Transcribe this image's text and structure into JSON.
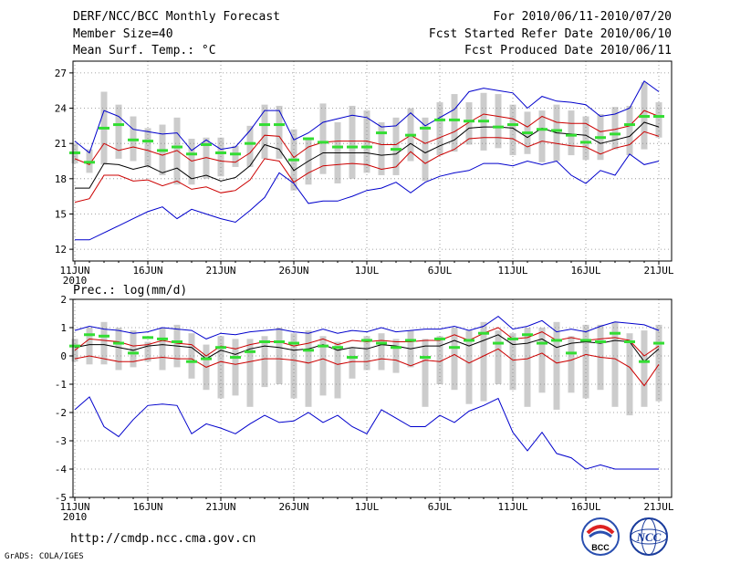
{
  "header": {
    "title": "DERF/NCC/BCC Monthly Forecast",
    "member_size": "Member Size=40",
    "variable": "Mean Surf. Temp.: °C",
    "forecast_period": "For 2010/06/11-2010/07/20",
    "refer_date": "Fcst Started Refer Date 2010/06/10",
    "produced_date": "Fcst Produced Date 2010/06/11"
  },
  "footer": {
    "url": "http://cmdp.ncc.cma.gov.cn",
    "credit": "GrADS: COLA/IGES",
    "logo_left_text": "BCC",
    "logo_right_text": "NCC"
  },
  "colors": {
    "max_min": "#0000cc",
    "spread": "#cc0000",
    "mean": "#000000",
    "median": "#33dd33",
    "box": "#cccccc"
  },
  "chart_data": [
    {
      "type": "line",
      "title": "Mean Surf. Temp.: °C",
      "days": 40,
      "ylim": [
        11,
        28
      ],
      "yticks": [
        12,
        15,
        18,
        21,
        24,
        27
      ],
      "xtick_labels": [
        "11JUN",
        "16JUN",
        "21JUN",
        "26JUN",
        "1JUL",
        "6JUL",
        "11JUL",
        "16JUL",
        "21JUL"
      ],
      "xtick_sub": "2010",
      "series": [
        {
          "name": "max",
          "color": "blue",
          "values": [
            21.2,
            20.2,
            23.8,
            23.3,
            22.2,
            22.0,
            21.8,
            21.9,
            20.4,
            21.3,
            20.5,
            20.7,
            22.1,
            23.8,
            23.8,
            21.3,
            21.9,
            22.8,
            23.1,
            23.4,
            23.2,
            22.4,
            22.5,
            23.6,
            22.5,
            23.2,
            23.9,
            25.4,
            25.7,
            25.5,
            25.3,
            24.0,
            25.0,
            24.6,
            24.5,
            24.3,
            23.3,
            23.5,
            24.0,
            26.3,
            25.4
          ]
        },
        {
          "name": "upper",
          "color": "red",
          "values": [
            19.7,
            19.2,
            21.0,
            20.4,
            20.7,
            20.4,
            20.0,
            20.4,
            19.5,
            19.8,
            19.5,
            19.4,
            20.2,
            21.7,
            21.6,
            19.8,
            20.7,
            21.1,
            21.2,
            21.2,
            21.2,
            20.9,
            20.9,
            21.7,
            21.0,
            21.5,
            22.0,
            22.8,
            23.5,
            23.3,
            23.1,
            22.4,
            23.3,
            22.8,
            22.7,
            22.7,
            22.0,
            22.2,
            22.5,
            23.8,
            23.3
          ]
        },
        {
          "name": "mean",
          "color": "black",
          "values": [
            17.2,
            17.2,
            19.3,
            19.2,
            18.8,
            19.1,
            18.5,
            18.9,
            18.0,
            18.3,
            17.8,
            18.1,
            19.1,
            20.9,
            20.5,
            18.7,
            19.5,
            20.2,
            20.2,
            20.2,
            20.2,
            20.0,
            20.1,
            21.0,
            20.2,
            20.8,
            21.3,
            22.3,
            22.4,
            22.4,
            22.3,
            21.5,
            22.3,
            21.9,
            21.8,
            21.7,
            21.0,
            21.3,
            21.6,
            22.8,
            22.4
          ]
        },
        {
          "name": "lower",
          "color": "red",
          "values": [
            16.0,
            16.3,
            18.3,
            18.3,
            17.8,
            17.9,
            17.4,
            17.8,
            17.1,
            17.3,
            16.8,
            17.0,
            17.9,
            19.7,
            19.5,
            17.7,
            18.5,
            19.1,
            19.2,
            19.3,
            19.2,
            18.8,
            19.0,
            20.3,
            19.3,
            20.0,
            20.5,
            21.4,
            21.5,
            21.5,
            21.4,
            20.7,
            21.2,
            21.0,
            20.8,
            20.7,
            20.1,
            20.6,
            20.9,
            22.0,
            21.6
          ]
        },
        {
          "name": "min",
          "color": "blue",
          "values": [
            12.8,
            12.8,
            13.4,
            14.0,
            14.6,
            15.2,
            15.6,
            14.6,
            15.4,
            15.0,
            14.6,
            14.3,
            15.3,
            16.4,
            18.5,
            17.6,
            15.9,
            16.1,
            16.1,
            16.5,
            17.0,
            17.2,
            17.7,
            16.8,
            17.7,
            18.2,
            18.5,
            18.7,
            19.3,
            19.3,
            19.1,
            19.5,
            19.2,
            19.5,
            18.3,
            17.6,
            18.7,
            18.3,
            20.1,
            19.2,
            19.5
          ]
        },
        {
          "name": "median",
          "color": "green",
          "values": [
            20.2,
            19.4,
            22.3,
            22.6,
            21.3,
            21.2,
            20.4,
            20.7,
            20.1,
            20.9,
            20.2,
            20.1,
            21.0,
            22.6,
            22.6,
            19.6,
            21.4,
            21.1,
            20.7,
            20.7,
            20.7,
            21.9,
            20.5,
            21.7,
            22.3,
            23.0,
            23.0,
            22.9,
            22.9,
            22.4,
            22.6,
            21.9,
            22.2,
            22.1,
            21.7,
            21.1,
            21.5,
            21.8,
            22.6,
            23.3,
            23.3
          ]
        },
        {
          "name": "box_top",
          "color": "gray",
          "values": [
            21.0,
            20.5,
            25.4,
            24.3,
            23.3,
            22.3,
            22.6,
            23.2,
            21.4,
            21.5,
            21.5,
            20.8,
            22.5,
            24.3,
            24.2,
            22.2,
            21.5,
            24.4,
            22.8,
            24.2,
            23.8,
            22.8,
            23.2,
            24.0,
            23.2,
            24.5,
            25.2,
            24.5,
            25.3,
            25.2,
            24.3,
            23.7,
            23.8,
            24.3,
            23.8,
            23.3,
            23.5,
            24.1,
            24.2,
            26.2,
            24.5
          ]
        },
        {
          "name": "box_bottom",
          "color": "gray",
          "values": [
            19.3,
            18.5,
            19.2,
            19.7,
            19.5,
            19.0,
            18.3,
            17.5,
            17.5,
            18.0,
            18.2,
            19.0,
            19.0,
            19.7,
            19.7,
            17.0,
            17.5,
            18.4,
            17.6,
            18.0,
            18.5,
            18.3,
            18.3,
            19.5,
            17.8,
            20.0,
            20.3,
            20.9,
            20.4,
            20.6,
            20.0,
            20.1,
            19.4,
            19.5,
            20.0,
            19.6,
            19.6,
            20.5,
            20.0,
            20.5,
            21.5
          ]
        }
      ]
    },
    {
      "type": "line",
      "title": "Prec.: log(mm/d)",
      "days": 40,
      "ylim": [
        -5,
        2
      ],
      "yticks": [
        -5,
        -4,
        -3,
        -2,
        -1,
        0,
        1,
        2
      ],
      "xtick_labels": [
        "11JUN",
        "16JUN",
        "21JUN",
        "26JUN",
        "1JUL",
        "6JUL",
        "11JUL",
        "16JUL",
        "21JUL"
      ],
      "xtick_sub": "2010",
      "series": [
        {
          "name": "max",
          "color": "blue",
          "values": [
            0.9,
            1.05,
            0.95,
            0.9,
            0.8,
            0.85,
            1.0,
            0.95,
            0.9,
            0.6,
            0.8,
            0.75,
            0.85,
            0.9,
            0.95,
            0.85,
            0.8,
            0.95,
            0.8,
            0.9,
            0.85,
            1.0,
            0.85,
            0.9,
            0.95,
            0.95,
            1.05,
            0.9,
            1.05,
            1.4,
            0.95,
            1.05,
            1.25,
            0.85,
            0.95,
            0.85,
            1.05,
            1.2,
            1.15,
            1.1,
            0.9
          ]
        },
        {
          "name": "upper",
          "color": "red",
          "values": [
            0.2,
            0.6,
            0.55,
            0.5,
            0.35,
            0.4,
            0.55,
            0.45,
            0.4,
            0.0,
            0.35,
            0.25,
            0.4,
            0.5,
            0.5,
            0.35,
            0.45,
            0.6,
            0.4,
            0.55,
            0.5,
            0.55,
            0.5,
            0.5,
            0.55,
            0.55,
            0.75,
            0.55,
            0.8,
            1.0,
            0.6,
            0.65,
            0.85,
            0.55,
            0.65,
            0.55,
            0.6,
            0.65,
            0.55,
            0.0,
            0.35
          ]
        },
        {
          "name": "mean",
          "color": "black",
          "values": [
            0.3,
            0.4,
            0.4,
            0.3,
            0.2,
            0.35,
            0.4,
            0.35,
            0.3,
            -0.1,
            0.2,
            0.05,
            0.25,
            0.35,
            0.3,
            0.2,
            0.25,
            0.4,
            0.2,
            0.3,
            0.25,
            0.4,
            0.35,
            0.25,
            0.35,
            0.35,
            0.55,
            0.35,
            0.55,
            0.75,
            0.4,
            0.45,
            0.6,
            0.3,
            0.45,
            0.5,
            0.45,
            0.55,
            0.5,
            -0.2,
            0.25
          ]
        },
        {
          "name": "lower",
          "color": "red",
          "values": [
            -0.1,
            0.0,
            -0.1,
            -0.2,
            -0.2,
            -0.1,
            -0.05,
            -0.1,
            -0.1,
            -0.4,
            -0.2,
            -0.3,
            -0.2,
            -0.1,
            -0.1,
            -0.15,
            -0.25,
            -0.1,
            -0.3,
            -0.2,
            -0.2,
            -0.1,
            -0.15,
            -0.35,
            -0.15,
            -0.2,
            0.05,
            -0.25,
            0.0,
            0.25,
            -0.15,
            -0.1,
            0.1,
            -0.25,
            -0.15,
            0.05,
            -0.05,
            -0.1,
            -0.4,
            -1.05,
            -0.3
          ]
        },
        {
          "name": "min",
          "color": "blue",
          "values": [
            -1.9,
            -1.45,
            -2.5,
            -2.85,
            -2.25,
            -1.75,
            -1.7,
            -1.75,
            -2.75,
            -2.4,
            -2.55,
            -2.75,
            -2.4,
            -2.1,
            -2.35,
            -2.3,
            -2.0,
            -2.35,
            -2.1,
            -2.5,
            -2.75,
            -1.9,
            -2.2,
            -2.5,
            -2.5,
            -2.1,
            -2.35,
            -1.95,
            -1.75,
            -1.5,
            -2.7,
            -3.35,
            -2.7,
            -3.45,
            -3.6,
            -4.0,
            -3.85,
            -4.0,
            -4.0,
            -4.0,
            -4.0
          ]
        },
        {
          "name": "median",
          "color": "green",
          "values": [
            0.35,
            0.75,
            0.7,
            0.45,
            0.1,
            0.65,
            0.6,
            0.5,
            -0.2,
            -0.1,
            0.3,
            -0.05,
            0.15,
            0.5,
            0.5,
            0.45,
            0.2,
            0.35,
            0.3,
            -0.05,
            0.55,
            0.45,
            0.3,
            0.55,
            -0.05,
            0.6,
            0.3,
            0.55,
            0.8,
            0.45,
            0.6,
            0.75,
            0.45,
            0.55,
            0.1,
            0.55,
            0.5,
            0.8,
            0.5,
            -0.2,
            0.45
          ]
        },
        {
          "name": "box_top",
          "color": "gray",
          "values": [
            0.6,
            1.0,
            1.2,
            1.0,
            0.9,
            0.5,
            1.0,
            1.1,
            0.8,
            0.4,
            0.7,
            0.6,
            0.6,
            0.7,
            1.0,
            0.8,
            0.9,
            0.7,
            0.5,
            0.3,
            0.7,
            0.8,
            0.6,
            0.9,
            0.6,
            0.7,
            1.0,
            0.9,
            1.2,
            0.9,
            0.8,
            1.0,
            1.0,
            1.2,
            0.7,
            1.1,
            1.1,
            1.2,
            0.8,
            0.9,
            1.1
          ]
        },
        {
          "name": "box_bottom",
          "color": "gray",
          "values": [
            -0.2,
            -0.3,
            -0.3,
            -0.5,
            -0.4,
            -0.2,
            -0.5,
            -0.4,
            -0.8,
            -1.2,
            -1.5,
            -1.4,
            -1.8,
            -1.1,
            -1.0,
            -1.5,
            -1.8,
            -1.4,
            -1.5,
            -0.8,
            -0.5,
            -0.5,
            -0.6,
            -0.4,
            -1.8,
            -1.0,
            -1.2,
            -1.7,
            -1.6,
            -1.0,
            -1.2,
            -1.8,
            -1.3,
            -1.9,
            -1.3,
            -1.5,
            -1.2,
            -1.8,
            -2.1,
            -1.8,
            -1.6
          ]
        }
      ]
    }
  ]
}
